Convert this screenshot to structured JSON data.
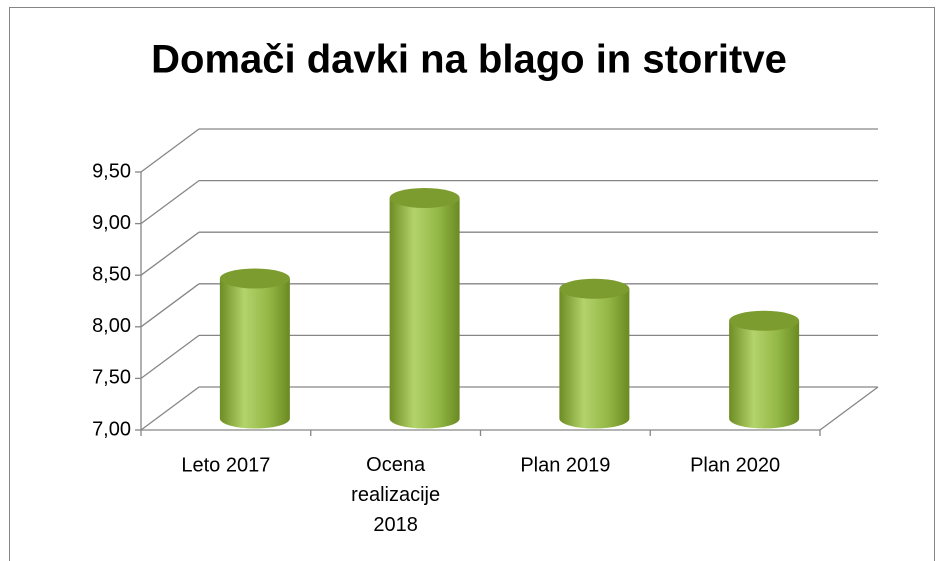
{
  "chart_data": {
    "type": "bar3d",
    "title": "Domači davki na blago in storitve",
    "categories": [
      "Leto 2017",
      "Ocena realizacije 2018",
      "Plan 2019",
      "Plan 2020"
    ],
    "values": [
      8.26,
      9.04,
      8.16,
      7.85
    ],
    "color": "#8fb33c",
    "ylim": [
      7,
      9.5
    ],
    "yticks": [
      {
        "value": 7,
        "label": "7,00"
      },
      {
        "value": 7.5,
        "label": "7,50"
      },
      {
        "value": 8,
        "label": "8,00"
      },
      {
        "value": 8.5,
        "label": "8,50"
      },
      {
        "value": 9,
        "label": "9,00"
      },
      {
        "value": 9.5,
        "label": "9,50"
      }
    ],
    "grid": true
  }
}
